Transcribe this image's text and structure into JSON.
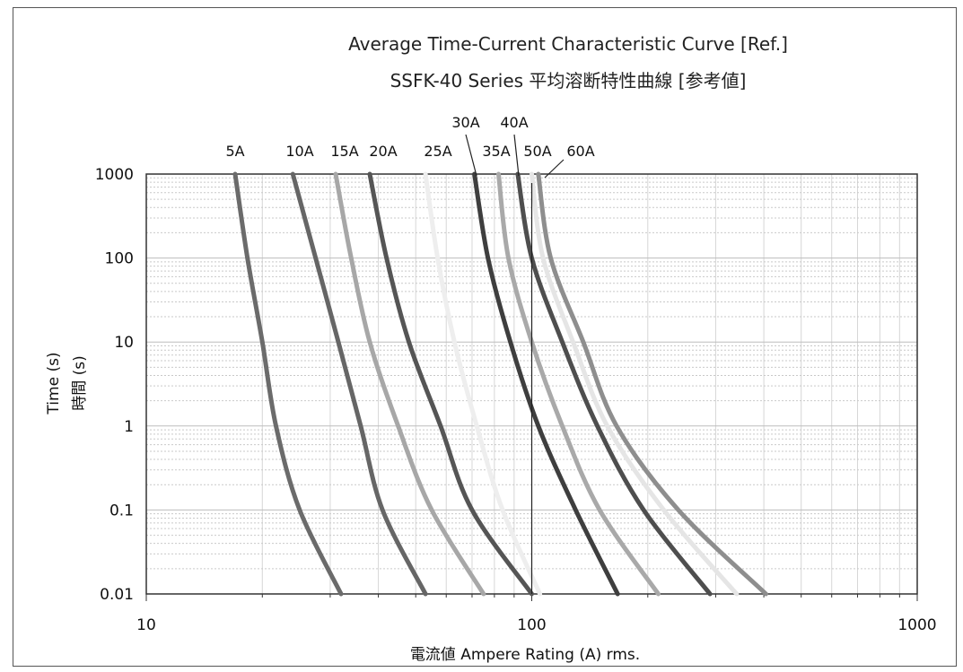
{
  "chart_data": {
    "type": "line",
    "title": "Average Time-Current Characteristic Curve [Ref.]",
    "subtitle": "SSFK-40 Series 平均溶断特性曲線 [参考値]",
    "xlabel": "電流値 Ampere Rating (A) rms.",
    "ylabel": "Time (s)",
    "ylabel_ja": "時間 (s)",
    "x_scale": "log",
    "y_scale": "log",
    "xlim": [
      10,
      1000
    ],
    "ylim": [
      0.01,
      1000
    ],
    "x_tick_labels": [
      "10",
      "100",
      "1000"
    ],
    "y_tick_labels": [
      "1000",
      "100",
      "10",
      "1",
      "0.1",
      "0.01"
    ],
    "grid": true,
    "series": [
      {
        "name": "5A",
        "color": "#6b6b6b",
        "points": [
          [
            17,
            1000
          ],
          [
            18.3,
            100
          ],
          [
            20.0,
            10
          ],
          [
            21.7,
            1
          ],
          [
            25.0,
            0.1
          ],
          [
            32.0,
            0.01
          ]
        ]
      },
      {
        "name": "10A",
        "color": "#666666",
        "points": [
          [
            24,
            1000
          ],
          [
            27.5,
            100
          ],
          [
            31.5,
            10
          ],
          [
            36.0,
            1
          ],
          [
            41.0,
            0.1
          ],
          [
            53.0,
            0.01
          ]
        ]
      },
      {
        "name": "15A",
        "color": "#a7a7a7",
        "points": [
          [
            31,
            1000
          ],
          [
            34.0,
            100
          ],
          [
            38.0,
            10
          ],
          [
            45.0,
            1
          ],
          [
            55.0,
            0.1
          ],
          [
            75.0,
            0.01
          ]
        ]
      },
      {
        "name": "20A",
        "color": "#555555",
        "points": [
          [
            38,
            1000
          ],
          [
            42.0,
            100
          ],
          [
            48.0,
            10
          ],
          [
            58.0,
            1
          ],
          [
            70.0,
            0.1
          ],
          [
            100.0,
            0.01
          ]
        ]
      },
      {
        "name": "25A",
        "color": "#eeeeee",
        "points": [
          [
            53,
            1000
          ],
          [
            57.0,
            100
          ],
          [
            63.0,
            10
          ],
          [
            72.0,
            1
          ],
          [
            84.0,
            0.1
          ],
          [
            105.0,
            0.01
          ]
        ]
      },
      {
        "name": "30A",
        "color": "#3e3e3e",
        "points": [
          [
            71,
            1000
          ],
          [
            77.0,
            100
          ],
          [
            88.0,
            10
          ],
          [
            104.0,
            1
          ],
          [
            130.0,
            0.1
          ],
          [
            167.0,
            0.01
          ]
        ]
      },
      {
        "name": "35A",
        "color": "#a9a9a9",
        "points": [
          [
            82,
            1000
          ],
          [
            87.0,
            100
          ],
          [
            100.0,
            10
          ],
          [
            120.0,
            1
          ],
          [
            150.0,
            0.1
          ],
          [
            213.0,
            0.01
          ]
        ]
      },
      {
        "name": "40A",
        "color": "#4e4e4e",
        "points": [
          [
            92,
            1000
          ],
          [
            100.0,
            100
          ],
          [
            120.0,
            10
          ],
          [
            148.0,
            1
          ],
          [
            195.0,
            0.1
          ],
          [
            290.0,
            0.01
          ]
        ]
      },
      {
        "name": "50A",
        "color": "#e5e5e5",
        "points": [
          [
            100,
            1000
          ],
          [
            107.0,
            100
          ],
          [
            128.0,
            10
          ],
          [
            157.0,
            1
          ],
          [
            220.0,
            0.1
          ],
          [
            340.0,
            0.01
          ]
        ]
      },
      {
        "name": "60A",
        "color": "#8e8e8e",
        "points": [
          [
            104,
            1000
          ],
          [
            112.0,
            100
          ],
          [
            136.0,
            10
          ],
          [
            166.0,
            1
          ],
          [
            240.0,
            0.1
          ],
          [
            405.0,
            0.01
          ]
        ]
      }
    ]
  }
}
